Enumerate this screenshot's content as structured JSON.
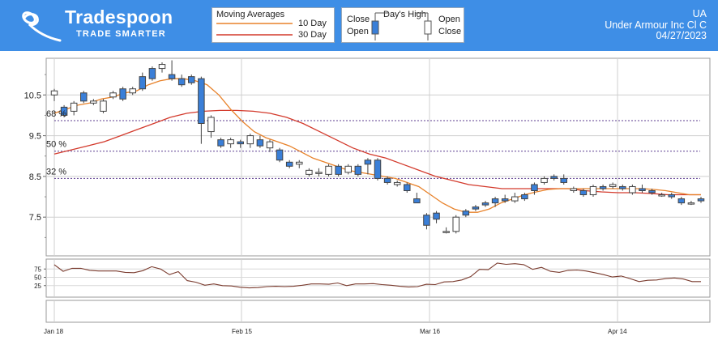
{
  "brand": {
    "name": "Tradespoon",
    "tagline": "TRADE SMARTER"
  },
  "legend_ma": {
    "title": "Moving Averages",
    "ma10": "10 Day",
    "ma30": "30 Day",
    "ma10_color": "#e8822a",
    "ma30_color": "#d33a2c"
  },
  "legend_candle": {
    "title": "Day's High",
    "left_top": "Close",
    "left_bottom": "Open",
    "right_top": "Open",
    "right_bottom": "Close",
    "down_color": "#3a7fd8"
  },
  "stock": {
    "ticker": "UA",
    "name": "Under Armour Inc Cl C",
    "date": "04/27/2023"
  },
  "chart_data": {
    "type": "candlestick",
    "x_ticks": [
      "Jan 18",
      "Feb 15",
      "Mar 16",
      "Apr 14"
    ],
    "y_ticks": [
      "10.5",
      "9.5",
      "8.5",
      "7.5"
    ],
    "ylim": [
      6.55,
      11.4
    ],
    "levels": [
      {
        "label": "68 %",
        "value": 9.87
      },
      {
        "label": "50 %",
        "value": 9.12
      },
      {
        "label": "32 %",
        "value": 8.45
      }
    ],
    "candles": [
      [
        10.5,
        10.6,
        10.35,
        10.65
      ],
      [
        10.2,
        10.0,
        9.95,
        10.25
      ],
      [
        10.1,
        10.3,
        10.0,
        10.35
      ],
      [
        10.55,
        10.35,
        10.3,
        10.6
      ],
      [
        10.3,
        10.35,
        10.25,
        10.4
      ],
      [
        10.1,
        10.35,
        10.05,
        10.4
      ],
      [
        10.45,
        10.55,
        10.4,
        10.6
      ],
      [
        10.65,
        10.4,
        10.35,
        10.7
      ],
      [
        10.55,
        10.65,
        10.5,
        10.7
      ],
      [
        10.95,
        10.65,
        10.6,
        11.05
      ],
      [
        11.15,
        10.9,
        10.85,
        11.2
      ],
      [
        11.15,
        11.25,
        11.05,
        11.3
      ],
      [
        11.0,
        10.9,
        10.85,
        11.35
      ],
      [
        10.9,
        10.75,
        10.7,
        11.0
      ],
      [
        10.95,
        10.8,
        10.75,
        11.0
      ],
      [
        10.9,
        9.8,
        9.3,
        10.95
      ],
      [
        9.6,
        9.95,
        9.45,
        10.0
      ],
      [
        9.4,
        9.25,
        9.2,
        9.45
      ],
      [
        9.3,
        9.4,
        9.2,
        9.45
      ],
      [
        9.35,
        9.3,
        9.2,
        9.4
      ],
      [
        9.3,
        9.5,
        9.2,
        9.55
      ],
      [
        9.4,
        9.25,
        9.2,
        9.5
      ],
      [
        9.2,
        9.35,
        9.1,
        9.4
      ],
      [
        9.15,
        8.9,
        8.85,
        9.2
      ],
      [
        8.85,
        8.75,
        8.7,
        8.9
      ],
      [
        8.8,
        8.85,
        8.7,
        8.9
      ],
      [
        8.55,
        8.65,
        8.5,
        8.7
      ],
      [
        8.6,
        8.6,
        8.5,
        8.7
      ],
      [
        8.55,
        8.75,
        8.5,
        8.8
      ],
      [
        8.75,
        8.55,
        8.5,
        8.8
      ],
      [
        8.6,
        8.75,
        8.55,
        8.8
      ],
      [
        8.75,
        8.55,
        8.5,
        8.8
      ],
      [
        8.9,
        8.8,
        8.55,
        8.95
      ],
      [
        8.9,
        8.45,
        8.4,
        8.95
      ],
      [
        8.45,
        8.35,
        8.3,
        8.5
      ],
      [
        8.3,
        8.35,
        8.25,
        8.4
      ],
      [
        8.3,
        8.15,
        8.1,
        8.35
      ],
      [
        7.95,
        7.85,
        7.85,
        8.1
      ],
      [
        7.55,
        7.3,
        7.2,
        7.6
      ],
      [
        7.6,
        7.45,
        7.35,
        7.65
      ],
      [
        7.15,
        7.15,
        7.1,
        7.25
      ],
      [
        7.15,
        7.5,
        7.1,
        7.55
      ],
      [
        7.65,
        7.55,
        7.5,
        7.7
      ],
      [
        7.75,
        7.7,
        7.65,
        7.8
      ],
      [
        7.85,
        7.8,
        7.75,
        7.9
      ],
      [
        7.95,
        7.85,
        7.75,
        8.0
      ],
      [
        7.95,
        7.9,
        7.85,
        8.05
      ],
      [
        7.9,
        8.0,
        7.85,
        8.1
      ],
      [
        8.05,
        7.95,
        7.9,
        8.1
      ],
      [
        8.3,
        8.15,
        8.05,
        8.35
      ],
      [
        8.35,
        8.45,
        8.3,
        8.5
      ],
      [
        8.5,
        8.45,
        8.4,
        8.55
      ],
      [
        8.45,
        8.35,
        8.3,
        8.55
      ],
      [
        8.15,
        8.2,
        8.1,
        8.25
      ],
      [
        8.15,
        8.05,
        8.0,
        8.2
      ],
      [
        8.05,
        8.25,
        8.0,
        8.3
      ],
      [
        8.25,
        8.2,
        8.15,
        8.3
      ],
      [
        8.25,
        8.3,
        8.2,
        8.35
      ],
      [
        8.25,
        8.2,
        8.15,
        8.3
      ],
      [
        8.1,
        8.25,
        8.05,
        8.3
      ],
      [
        8.2,
        8.15,
        8.1,
        8.3
      ],
      [
        8.15,
        8.1,
        8.05,
        8.2
      ],
      [
        8.05,
        8.05,
        8.0,
        8.1
      ],
      [
        8.05,
        8.0,
        7.95,
        8.1
      ],
      [
        7.95,
        7.85,
        7.8,
        8.0
      ],
      [
        7.85,
        7.85,
        7.8,
        7.9
      ],
      [
        7.95,
        7.9,
        7.85,
        8.0
      ]
    ],
    "ma10": [
      10.05,
      10.15,
      10.25,
      10.3,
      10.4,
      10.45,
      10.55,
      10.6,
      10.75,
      10.85,
      10.9,
      10.9,
      10.85,
      10.75,
      10.5,
      10.15,
      9.85,
      9.6,
      9.45,
      9.35,
      9.25,
      9.1,
      8.95,
      8.85,
      8.75,
      8.65,
      8.6,
      8.55,
      8.5,
      8.45,
      8.35,
      8.25,
      8.05,
      7.85,
      7.7,
      7.62,
      7.62,
      7.7,
      7.85,
      7.95,
      8.05,
      8.12,
      8.18,
      8.2,
      8.2,
      8.2,
      8.2,
      8.2,
      8.2,
      8.2,
      8.2,
      8.18,
      8.15,
      8.1,
      8.05,
      8.05
    ],
    "ma30": [
      9.05,
      9.15,
      9.25,
      9.35,
      9.5,
      9.65,
      9.8,
      9.95,
      10.05,
      10.1,
      10.12,
      10.12,
      10.1,
      10.05,
      9.95,
      9.8,
      9.6,
      9.4,
      9.2,
      9.05,
      8.95,
      8.8,
      8.65,
      8.5,
      8.4,
      8.3,
      8.25,
      8.2,
      8.2,
      8.2,
      8.2,
      8.2,
      8.15,
      8.12,
      8.1,
      8.1,
      8.08,
      8.05,
      8.05,
      8.05
    ],
    "osc_ticks": [
      "75",
      "50",
      "25"
    ],
    "oscillator": [
      88,
      68,
      77,
      77,
      71,
      69,
      69,
      69,
      65,
      64,
      70,
      82,
      75,
      58,
      67,
      40,
      35,
      26,
      30,
      25,
      24,
      20,
      18,
      19,
      22,
      23,
      22,
      23,
      26,
      30,
      30,
      29,
      33,
      25,
      30,
      30,
      31,
      28,
      26,
      23,
      21,
      22,
      29,
      28,
      36,
      37,
      42,
      52,
      74,
      73,
      93,
      89,
      91,
      88,
      74,
      80,
      68,
      65,
      71,
      72,
      69,
      64,
      58,
      51,
      54,
      46,
      37,
      41,
      42,
      46,
      48,
      45,
      37,
      37
    ]
  }
}
